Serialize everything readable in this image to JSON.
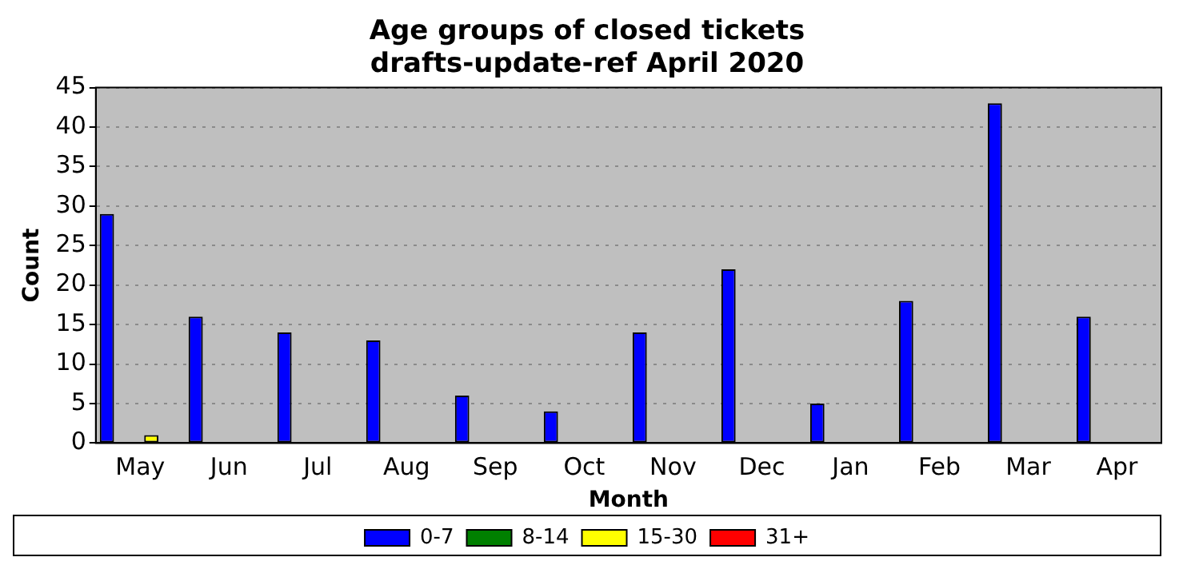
{
  "chart_data": {
    "type": "bar",
    "title": "Age groups of closed tickets\ndrafts-update-ref April 2020",
    "xlabel": "Month",
    "ylabel": "Count",
    "categories": [
      "May",
      "Jun",
      "Jul",
      "Aug",
      "Sep",
      "Oct",
      "Nov",
      "Dec",
      "Jan",
      "Feb",
      "Mar",
      "Apr"
    ],
    "series": [
      {
        "name": "0-7",
        "color": "#0000ff",
        "values": [
          29,
          16,
          14,
          13,
          6,
          4,
          14,
          22,
          5,
          18,
          43,
          16
        ]
      },
      {
        "name": "8-14",
        "color": "#008000",
        "values": [
          0,
          0,
          0,
          0,
          0,
          0,
          0,
          0,
          0,
          0,
          0,
          0
        ]
      },
      {
        "name": "15-30",
        "color": "#ffff00",
        "values": [
          1,
          0,
          0,
          0,
          0,
          0,
          0,
          0,
          0,
          0,
          0,
          0
        ]
      },
      {
        "name": "31+",
        "color": "#ff0000",
        "values": [
          0,
          0,
          0,
          0,
          0,
          0,
          0,
          0,
          0,
          0,
          0,
          0
        ]
      }
    ],
    "ylim": [
      0,
      45
    ],
    "yticks": [
      0,
      5,
      10,
      15,
      20,
      25,
      30,
      35,
      40,
      45
    ],
    "grid": "y",
    "legend": "bottom"
  }
}
